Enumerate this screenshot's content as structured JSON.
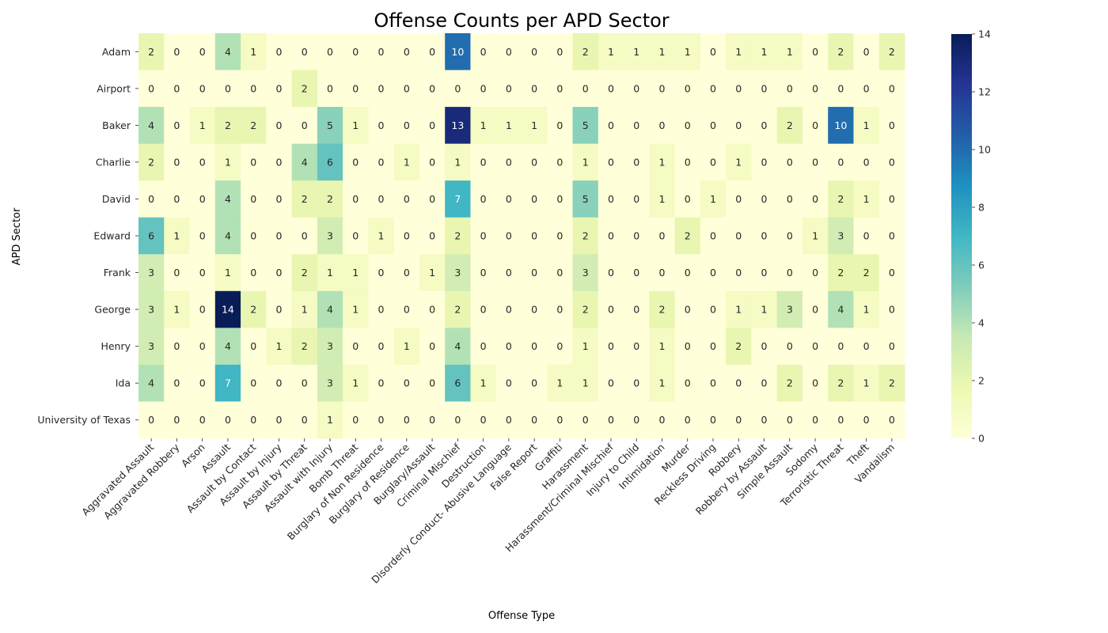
{
  "chart_data": {
    "type": "heatmap",
    "title": "Offense Counts per APD Sector",
    "xlabel": "Offense Type",
    "ylabel": "APD Sector",
    "x_categories": [
      "Aggravated Assault",
      "Aggravated Robbery",
      "Arson",
      "Assault",
      "Assault by Contact",
      "Assault by Injury",
      "Assault by Threat",
      "Assault with Injury",
      "Bomb Threat",
      "Burglary of Non Residence",
      "Burglary of Residence",
      "Burglary/Assault",
      "Criminal Mischief",
      "Destruction",
      "Disorderly Conduct- Abusive Language",
      "False Report",
      "Graffiti",
      "Harassment",
      "Harassment/Criminal Mischief",
      "Injury to Child",
      "Intimidation",
      "Murder",
      "Reckless Driving",
      "Robbery",
      "Robbery by Assault",
      "Simple Assault",
      "Sodomy",
      "Terroristic Threat",
      "Theft",
      "Vandalism"
    ],
    "y_categories": [
      "Adam",
      "Airport",
      "Baker",
      "Charlie",
      "David",
      "Edward",
      "Frank",
      "George",
      "Henry",
      "Ida",
      "University of Texas"
    ],
    "values": [
      [
        2,
        0,
        0,
        4,
        1,
        0,
        0,
        0,
        0,
        0,
        0,
        0,
        10,
        0,
        0,
        0,
        0,
        2,
        1,
        1,
        1,
        1,
        0,
        1,
        1,
        1,
        0,
        2,
        0,
        2
      ],
      [
        0,
        0,
        0,
        0,
        0,
        0,
        2,
        0,
        0,
        0,
        0,
        0,
        0,
        0,
        0,
        0,
        0,
        0,
        0,
        0,
        0,
        0,
        0,
        0,
        0,
        0,
        0,
        0,
        0,
        0
      ],
      [
        4,
        0,
        1,
        2,
        2,
        0,
        0,
        5,
        1,
        0,
        0,
        0,
        13,
        1,
        1,
        1,
        0,
        5,
        0,
        0,
        0,
        0,
        0,
        0,
        0,
        2,
        0,
        10,
        1,
        0
      ],
      [
        2,
        0,
        0,
        1,
        0,
        0,
        4,
        6,
        0,
        0,
        1,
        0,
        1,
        0,
        0,
        0,
        0,
        1,
        0,
        0,
        1,
        0,
        0,
        1,
        0,
        0,
        0,
        0,
        0,
        0
      ],
      [
        0,
        0,
        0,
        4,
        0,
        0,
        2,
        2,
        0,
        0,
        0,
        0,
        7,
        0,
        0,
        0,
        0,
        5,
        0,
        0,
        1,
        0,
        1,
        0,
        0,
        0,
        0,
        2,
        1,
        0
      ],
      [
        6,
        1,
        0,
        4,
        0,
        0,
        0,
        3,
        0,
        1,
        0,
        0,
        2,
        0,
        0,
        0,
        0,
        2,
        0,
        0,
        0,
        2,
        0,
        0,
        0,
        0,
        1,
        3,
        0,
        0
      ],
      [
        3,
        0,
        0,
        1,
        0,
        0,
        2,
        1,
        1,
        0,
        0,
        1,
        3,
        0,
        0,
        0,
        0,
        3,
        0,
        0,
        0,
        0,
        0,
        0,
        0,
        0,
        0,
        2,
        2,
        0
      ],
      [
        3,
        1,
        0,
        14,
        2,
        0,
        1,
        4,
        1,
        0,
        0,
        0,
        2,
        0,
        0,
        0,
        0,
        2,
        0,
        0,
        2,
        0,
        0,
        1,
        1,
        3,
        0,
        4,
        1,
        0
      ],
      [
        3,
        0,
        0,
        4,
        0,
        1,
        2,
        3,
        0,
        0,
        1,
        0,
        4,
        0,
        0,
        0,
        0,
        1,
        0,
        0,
        1,
        0,
        0,
        2,
        0,
        0,
        0,
        0,
        0,
        0
      ],
      [
        4,
        0,
        0,
        7,
        0,
        0,
        0,
        3,
        1,
        0,
        0,
        0,
        6,
        1,
        0,
        0,
        1,
        1,
        0,
        0,
        1,
        0,
        0,
        0,
        0,
        2,
        0,
        2,
        1,
        2
      ],
      [
        0,
        0,
        0,
        0,
        0,
        0,
        0,
        1,
        0,
        0,
        0,
        0,
        0,
        0,
        0,
        0,
        0,
        0,
        0,
        0,
        0,
        0,
        0,
        0,
        0,
        0,
        0,
        0,
        0,
        0
      ]
    ],
    "colorbar": {
      "min": 0,
      "max": 14,
      "ticks": [
        "0",
        "2",
        "4",
        "6",
        "8",
        "10",
        "12",
        "14"
      ]
    },
    "colormap": "YlGnBu",
    "grid": false
  }
}
